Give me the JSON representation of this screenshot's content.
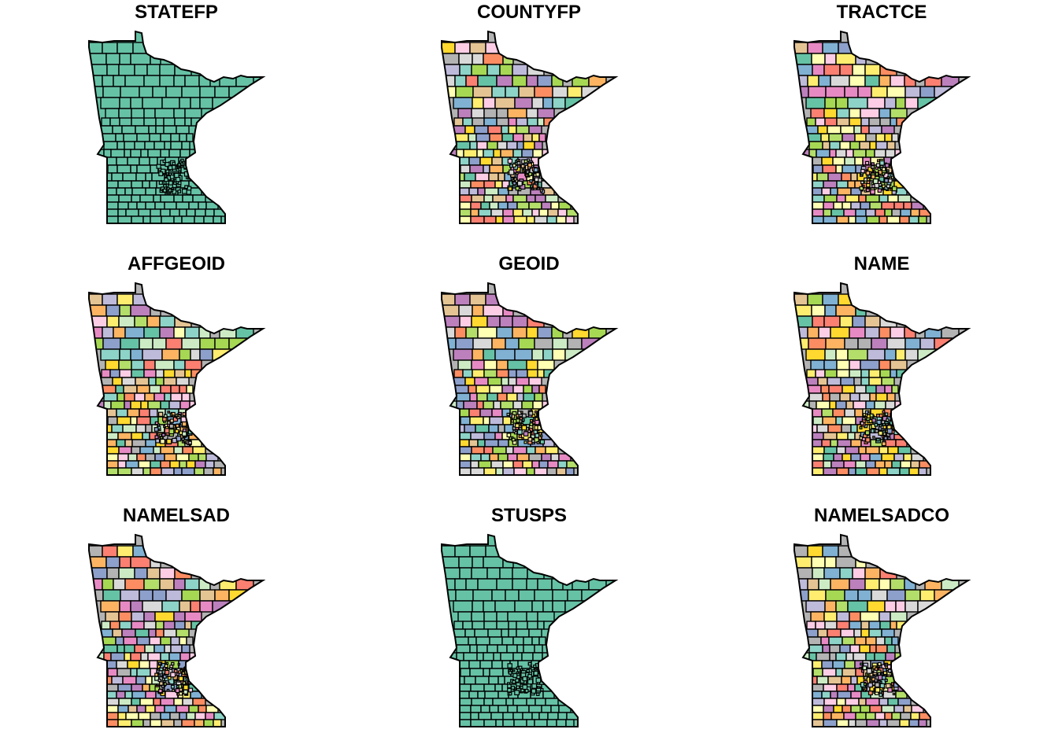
{
  "figure": {
    "panels": [
      {
        "title": "STATEFP",
        "mode": "single"
      },
      {
        "title": "COUNTYFP",
        "mode": "multi"
      },
      {
        "title": "TRACTCE",
        "mode": "multi"
      },
      {
        "title": "AFFGEOID",
        "mode": "multi"
      },
      {
        "title": "GEOID",
        "mode": "multi"
      },
      {
        "title": "NAME",
        "mode": "multi"
      },
      {
        "title": "NAMELSAD",
        "mode": "multi"
      },
      {
        "title": "STUSPS",
        "mode": "single"
      },
      {
        "title": "NAMELSADCO",
        "mode": "multi"
      }
    ],
    "single_fill": "#66C2A5",
    "palette": [
      "#66C2A5",
      "#FC8D62",
      "#8DA0CB",
      "#E78AC3",
      "#A6D854",
      "#FFD92F",
      "#E5C494",
      "#B3B3B3",
      "#8DD3C7",
      "#FFFFB3",
      "#BEBADA",
      "#FB8072",
      "#80B1D3",
      "#FDB462",
      "#B3DE69",
      "#FCCDE5",
      "#D9D9D9",
      "#BC80BD",
      "#CCEBC5",
      "#FFED6F"
    ],
    "outline_color": "#000000"
  }
}
